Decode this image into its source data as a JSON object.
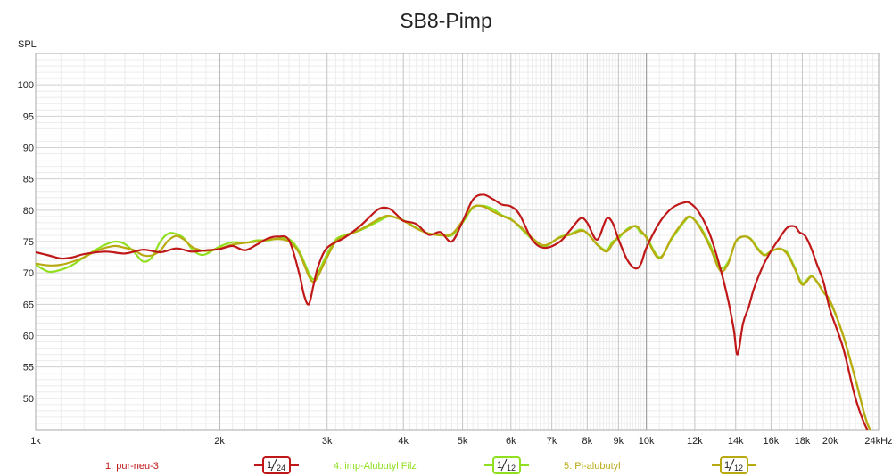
{
  "chart_data": {
    "type": "line",
    "title": "SB8-Pimp",
    "ylabel": "SPL",
    "xlabel": "",
    "x_scale": "log",
    "xlim": [
      1000,
      24000
    ],
    "ylim": [
      45,
      105
    ],
    "grid": true,
    "legend_position": "bottom",
    "x_ticks": [
      {
        "value": 1000,
        "label": "1k"
      },
      {
        "value": 2000,
        "label": "2k"
      },
      {
        "value": 3000,
        "label": "3k"
      },
      {
        "value": 4000,
        "label": "4k"
      },
      {
        "value": 5000,
        "label": "5k"
      },
      {
        "value": 6000,
        "label": "6k"
      },
      {
        "value": 7000,
        "label": "7k"
      },
      {
        "value": 8000,
        "label": "8k"
      },
      {
        "value": 9000,
        "label": "9k"
      },
      {
        "value": 10000,
        "label": "10k"
      },
      {
        "value": 12000,
        "label": "12k"
      },
      {
        "value": 14000,
        "label": "14k"
      },
      {
        "value": 16000,
        "label": "16k"
      },
      {
        "value": 18000,
        "label": "18k"
      },
      {
        "value": 20000,
        "label": "20k"
      },
      {
        "value": 24000,
        "label": "24kHz"
      }
    ],
    "y_ticks": [
      50,
      55,
      60,
      65,
      70,
      75,
      80,
      85,
      90,
      95,
      100
    ],
    "series": [
      {
        "name": "1: pur-neu-3",
        "smoothing": "1/24",
        "color": "#c01818",
        "x": [
          1000,
          1050,
          1100,
          1150,
          1200,
          1300,
          1400,
          1500,
          1600,
          1700,
          1800,
          1900,
          2000,
          2100,
          2200,
          2300,
          2400,
          2500,
          2600,
          2700,
          2750,
          2800,
          2850,
          2900,
          3000,
          3200,
          3400,
          3600,
          3700,
          3800,
          3900,
          4000,
          4200,
          4400,
          4600,
          4800,
          5000,
          5200,
          5400,
          5600,
          5800,
          6000,
          6200,
          6500,
          6800,
          7200,
          7500,
          7800,
          8000,
          8300,
          8600,
          8800,
          9000,
          9300,
          9600,
          9800,
          10000,
          10500,
          11000,
          11500,
          11800,
          12200,
          12700,
          13200,
          13600,
          13900,
          14100,
          14400,
          14700,
          15000,
          15500,
          16000,
          16500,
          17000,
          17500,
          17800,
          18200,
          18600,
          19000,
          19500,
          20000,
          21000,
          22000,
          23000,
          24000
        ],
        "y": [
          73.3,
          72.8,
          72.3,
          72.5,
          73.0,
          73.4,
          73.1,
          73.7,
          73.3,
          73.9,
          73.4,
          73.6,
          73.8,
          74.3,
          73.6,
          74.5,
          75.5,
          75.8,
          75.2,
          70.0,
          66.5,
          65.0,
          68.0,
          71.0,
          74.0,
          75.6,
          77.5,
          79.8,
          80.4,
          80.2,
          79.3,
          78.3,
          77.8,
          76.1,
          76.5,
          75.0,
          78.2,
          81.7,
          82.5,
          81.8,
          80.9,
          80.6,
          79.3,
          75.3,
          74.0,
          74.9,
          76.8,
          78.7,
          78.0,
          75.3,
          78.6,
          78.0,
          75.4,
          72.1,
          70.7,
          71.5,
          74.0,
          78.0,
          80.3,
          81.2,
          81.1,
          79.6,
          76.2,
          70.9,
          65.8,
          61.0,
          57.0,
          62.0,
          64.5,
          67.5,
          71.0,
          73.5,
          75.5,
          77.2,
          77.4,
          76.5,
          75.9,
          74.0,
          71.5,
          68.5,
          64.0,
          58.0,
          50.0,
          45.0,
          43.0
        ]
      },
      {
        "name": "4: imp-Alubutyl  Filz",
        "smoothing": "1/12",
        "color": "#90e020",
        "x": [
          1000,
          1050,
          1100,
          1150,
          1200,
          1250,
          1300,
          1350,
          1400,
          1450,
          1500,
          1550,
          1600,
          1650,
          1700,
          1750,
          1800,
          1850,
          1900,
          2000,
          2100,
          2200,
          2300,
          2400,
          2500,
          2600,
          2700,
          2800,
          2850,
          2900,
          3000,
          3100,
          3200,
          3400,
          3600,
          3700,
          3800,
          4000,
          4200,
          4400,
          4600,
          4800,
          5000,
          5200,
          5400,
          5600,
          5800,
          6000,
          6200,
          6500,
          6800,
          7200,
          7500,
          7800,
          8000,
          8300,
          8600,
          8800,
          9000,
          9300,
          9600,
          9800,
          10000,
          10500,
          11000,
          11500,
          11800,
          12200,
          12700,
          13200,
          13600,
          14000,
          14400,
          14800,
          15200,
          15600,
          16000,
          16500,
          17000,
          17500,
          18000,
          18600,
          19000,
          19500,
          20000,
          21000,
          22000,
          23000,
          24000
        ],
        "y": [
          71.3,
          70.2,
          70.5,
          71.3,
          72.5,
          73.6,
          74.5,
          75.0,
          74.6,
          73.3,
          71.8,
          72.5,
          75.0,
          76.3,
          76.2,
          75.5,
          73.9,
          73.0,
          73.0,
          74.2,
          74.9,
          74.8,
          75.2,
          75.2,
          75.5,
          75.4,
          73.5,
          70.0,
          69.0,
          70.0,
          73.0,
          75.3,
          76.0,
          76.8,
          78.0,
          78.6,
          79.0,
          78.4,
          77.2,
          76.3,
          76.1,
          76.0,
          78.0,
          80.4,
          80.7,
          80.2,
          79.2,
          78.6,
          77.3,
          75.4,
          74.2,
          75.7,
          76.2,
          76.9,
          76.3,
          74.6,
          73.6,
          75.0,
          75.5,
          77.0,
          77.4,
          76.3,
          75.8,
          72.5,
          75.4,
          78.0,
          78.9,
          77.6,
          74.6,
          70.9,
          71.7,
          74.9,
          75.8,
          75.5,
          74.0,
          72.9,
          73.5,
          73.8,
          73.3,
          70.8,
          68.4,
          69.5,
          68.6,
          66.9,
          65.3,
          60.0,
          53.0,
          46.0,
          43.0
        ]
      },
      {
        "name": "5: Pi-alubutyl",
        "smoothing": "1/12",
        "color": "#b8aa10",
        "x": [
          1000,
          1050,
          1100,
          1150,
          1200,
          1250,
          1300,
          1350,
          1400,
          1450,
          1500,
          1550,
          1600,
          1650,
          1700,
          1750,
          1800,
          1850,
          1900,
          2000,
          2100,
          2200,
          2300,
          2400,
          2500,
          2600,
          2700,
          2800,
          2850,
          2900,
          3000,
          3100,
          3200,
          3400,
          3600,
          3700,
          3800,
          4000,
          4200,
          4400,
          4600,
          4800,
          5000,
          5200,
          5400,
          5600,
          5800,
          6000,
          6200,
          6500,
          6800,
          7200,
          7500,
          7800,
          8000,
          8300,
          8600,
          8800,
          9000,
          9300,
          9600,
          9800,
          10000,
          10500,
          11000,
          11500,
          11800,
          12200,
          12700,
          13200,
          13600,
          14000,
          14400,
          14800,
          15200,
          15600,
          16000,
          16500,
          17000,
          17500,
          18000,
          18600,
          19000,
          19500,
          20000,
          21000,
          22000,
          23000,
          24000
        ],
        "y": [
          71.5,
          71.2,
          71.3,
          71.8,
          72.5,
          73.4,
          74.0,
          74.3,
          74.0,
          73.6,
          72.8,
          72.8,
          73.6,
          75.2,
          75.9,
          75.3,
          74.2,
          73.7,
          73.5,
          73.9,
          74.5,
          74.8,
          75.0,
          75.3,
          75.4,
          75.0,
          73.2,
          69.5,
          68.6,
          69.5,
          72.5,
          75.0,
          75.8,
          76.9,
          78.3,
          78.9,
          79.1,
          78.3,
          77.1,
          76.3,
          76.0,
          76.2,
          78.3,
          80.5,
          80.6,
          79.8,
          79.1,
          78.5,
          77.5,
          75.6,
          74.4,
          75.6,
          76.1,
          76.7,
          76.4,
          74.5,
          73.4,
          74.6,
          75.8,
          76.8,
          77.5,
          76.7,
          75.6,
          72.3,
          75.6,
          78.2,
          79.0,
          77.4,
          74.2,
          70.4,
          71.4,
          75.0,
          75.8,
          75.4,
          73.8,
          72.8,
          73.4,
          73.9,
          73.0,
          70.6,
          68.1,
          69.4,
          68.7,
          66.9,
          65.5,
          60.0,
          53.0,
          46.0,
          43.0
        ]
      }
    ]
  }
}
